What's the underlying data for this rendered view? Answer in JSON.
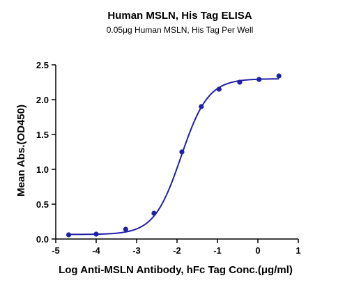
{
  "chart_data": {
    "type": "scatter",
    "title": "Human MSLN, His Tag ELISA",
    "subtitle": "0.05μg Human MSLN, His Tag Per Well",
    "xlabel": "Log Anti-MSLN Antibody, hFc Tag Conc.(μg/ml)",
    "ylabel": "Mean Abs.(OD450)",
    "xlim": [
      -5,
      1
    ],
    "ylim": [
      0.0,
      2.5
    ],
    "x_ticks": [
      "-5",
      "-4",
      "-3",
      "-2",
      "-1",
      "0",
      "1"
    ],
    "y_ticks": [
      "0.0",
      "0.5",
      "1.0",
      "1.5",
      "2.0",
      "2.5"
    ],
    "grid": false,
    "colors": {
      "series": "#1f1fa8",
      "axis": "#000000"
    },
    "points": [
      {
        "x": -4.68,
        "y": 0.06
      },
      {
        "x": -4.0,
        "y": 0.07
      },
      {
        "x": -3.27,
        "y": 0.14
      },
      {
        "x": -2.57,
        "y": 0.37
      },
      {
        "x": -1.88,
        "y": 1.25
      },
      {
        "x": -1.4,
        "y": 1.9
      },
      {
        "x": -0.96,
        "y": 2.15
      },
      {
        "x": -0.45,
        "y": 2.25
      },
      {
        "x": 0.03,
        "y": 2.29
      },
      {
        "x": 0.52,
        "y": 2.34
      }
    ],
    "fit": {
      "bottom": 0.065,
      "top": 2.3,
      "logEC50": -1.9,
      "hill": 1.3
    }
  }
}
